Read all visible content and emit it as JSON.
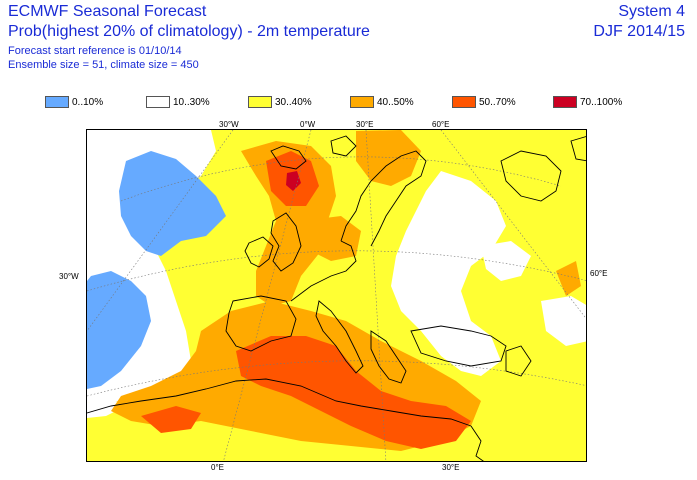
{
  "header": {
    "title": "ECMWF Seasonal Forecast",
    "subtitle": "Prob(highest 20% of climatology) - 2m temperature",
    "forecast_start": "Forecast start reference is 01/10/14",
    "ensemble": "Ensemble size = 51, climate size = 450",
    "system": "System 4",
    "period": "DJF 2014/15"
  },
  "legend": [
    {
      "label": "0..10%",
      "color": "#66aaff"
    },
    {
      "label": "10..30%",
      "color": "#ffffff"
    },
    {
      "label": "30..40%",
      "color": "#ffff33"
    },
    {
      "label": "40..50%",
      "color": "#ffaa00"
    },
    {
      "label": "50..70%",
      "color": "#ff5500"
    },
    {
      "label": "70..100%",
      "color": "#cc0022"
    }
  ],
  "axis_labels": {
    "top_30w": "30°W",
    "top_0e": "0°W",
    "top_30e": "30°E",
    "top_60e": "60°E",
    "left_30w": "30°W",
    "right_60e": "60°E",
    "bottom_0e": "0°E",
    "bottom_30e": "30°E"
  }
}
